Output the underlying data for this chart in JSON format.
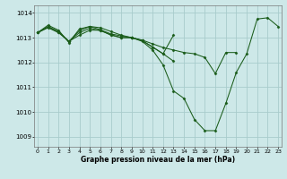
{
  "title": "Graphe pression niveau de la mer (hPa)",
  "background_color": "#cde8e8",
  "grid_color": "#a8cccc",
  "line_color": "#1a5c1a",
  "x_ticks": [
    0,
    1,
    2,
    3,
    4,
    5,
    6,
    7,
    8,
    9,
    10,
    11,
    12,
    13,
    14,
    15,
    16,
    17,
    18,
    19,
    20,
    21,
    22,
    23
  ],
  "y_ticks": [
    1009,
    1010,
    1011,
    1012,
    1013,
    1014
  ],
  "ylim": [
    1008.6,
    1014.3
  ],
  "xlim": [
    -0.3,
    23.3
  ],
  "series": [
    [
      1013.2,
      1013.5,
      1013.3,
      1012.8,
      1013.35,
      1013.45,
      1013.4,
      1013.25,
      1013.1,
      1013.0,
      1012.85,
      1012.5,
      1011.9,
      1010.85,
      1010.55,
      1009.7,
      1009.25,
      1009.25,
      1010.35,
      1011.6,
      1012.35,
      1013.75,
      1013.8,
      1013.45
    ],
    [
      1013.2,
      1013.45,
      1013.25,
      1012.85,
      1013.1,
      1013.3,
      1013.3,
      1013.1,
      1013.0,
      1013.0,
      1012.9,
      1012.75,
      1012.6,
      1012.5,
      1012.4,
      1012.35,
      1012.2,
      1011.55,
      1012.4,
      1012.4,
      null,
      null,
      null,
      null
    ],
    [
      1013.2,
      1013.42,
      1013.22,
      1012.85,
      1013.2,
      1013.38,
      1013.28,
      1013.12,
      1013.0,
      1013.0,
      1012.88,
      1012.62,
      1012.35,
      1013.1,
      null,
      null,
      null,
      null,
      null,
      null,
      null,
      null,
      null,
      null
    ],
    [
      1013.2,
      1013.4,
      1013.2,
      1012.85,
      1013.28,
      1013.45,
      1013.32,
      1013.15,
      1013.07,
      1013.0,
      1012.88,
      1012.62,
      1012.35,
      1012.05,
      null,
      null,
      null,
      null,
      null,
      null,
      null,
      null,
      null,
      null
    ]
  ]
}
